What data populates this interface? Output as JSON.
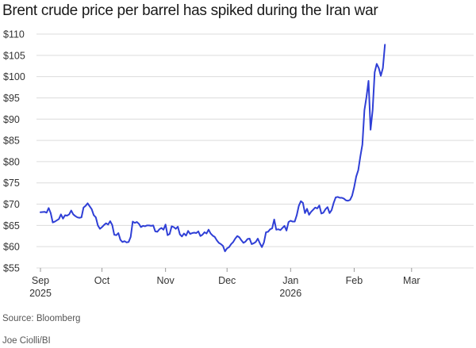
{
  "chart_data": {
    "type": "line",
    "title": "Brent crude price per barrel has spiked during the Iran war",
    "xlabel": "",
    "ylabel": "",
    "ylim": [
      55,
      110
    ],
    "yticks": [
      55,
      60,
      65,
      70,
      75,
      80,
      85,
      90,
      95,
      100,
      105,
      110
    ],
    "ytick_labels": [
      "$55",
      "$60",
      "$65",
      "$70",
      "$75",
      "$80",
      "$85",
      "$90",
      "$95",
      "$100",
      "$105",
      "$110"
    ],
    "xlim": [
      0,
      207
    ],
    "xticks": [
      {
        "x": 0,
        "label": "Sep",
        "sub": "2025"
      },
      {
        "x": 30,
        "label": "Oct",
        "sub": ""
      },
      {
        "x": 61,
        "label": "Nov",
        "sub": ""
      },
      {
        "x": 91,
        "label": "Dec",
        "sub": ""
      },
      {
        "x": 122,
        "label": "Jan",
        "sub": "2026"
      },
      {
        "x": 153,
        "label": "Feb",
        "sub": ""
      },
      {
        "x": 181,
        "label": "Mar",
        "sub": ""
      }
    ],
    "grid": true,
    "series": [
      {
        "name": "Brent crude",
        "color": "#2f3fd6",
        "points": [
          [
            0,
            68.1
          ],
          [
            2,
            68.2
          ],
          [
            3,
            68.0
          ],
          [
            4,
            69.1
          ],
          [
            5,
            67.9
          ],
          [
            6,
            65.7
          ],
          [
            7,
            65.9
          ],
          [
            8,
            66.2
          ],
          [
            9,
            66.5
          ],
          [
            10,
            67.6
          ],
          [
            11,
            66.6
          ],
          [
            12,
            67.4
          ],
          [
            13,
            67.3
          ],
          [
            14,
            67.6
          ],
          [
            15,
            68.5
          ],
          [
            16,
            67.6
          ],
          [
            17,
            67.2
          ],
          [
            18,
            66.9
          ],
          [
            19,
            66.8
          ],
          [
            20,
            66.9
          ],
          [
            21,
            69.2
          ],
          [
            22,
            69.6
          ],
          [
            23,
            70.2
          ],
          [
            24,
            69.5
          ],
          [
            25,
            68.8
          ],
          [
            26,
            67.4
          ],
          [
            27,
            66.9
          ],
          [
            28,
            65.0
          ],
          [
            29,
            64.2
          ],
          [
            30,
            64.6
          ],
          [
            31,
            65.1
          ],
          [
            32,
            65.5
          ],
          [
            33,
            65.2
          ],
          [
            34,
            66.0
          ],
          [
            35,
            65.1
          ],
          [
            36,
            62.8
          ],
          [
            37,
            62.7
          ],
          [
            38,
            63.2
          ],
          [
            39,
            61.6
          ],
          [
            40,
            61.1
          ],
          [
            41,
            61.3
          ],
          [
            42,
            61.0
          ],
          [
            43,
            61.1
          ],
          [
            44,
            62.3
          ],
          [
            45,
            65.9
          ],
          [
            46,
            65.6
          ],
          [
            47,
            65.8
          ],
          [
            48,
            65.4
          ],
          [
            49,
            64.6
          ],
          [
            50,
            64.9
          ],
          [
            51,
            64.8
          ],
          [
            52,
            65.0
          ],
          [
            53,
            65.0
          ],
          [
            54,
            64.9
          ],
          [
            55,
            65.0
          ],
          [
            56,
            63.6
          ],
          [
            57,
            63.5
          ],
          [
            58,
            64.1
          ],
          [
            59,
            64.4
          ],
          [
            60,
            64.0
          ],
          [
            61,
            65.2
          ],
          [
            62,
            62.7
          ],
          [
            63,
            63.0
          ],
          [
            64,
            64.8
          ],
          [
            65,
            64.6
          ],
          [
            66,
            64.2
          ],
          [
            67,
            64.7
          ],
          [
            68,
            62.9
          ],
          [
            69,
            62.4
          ],
          [
            70,
            63.1
          ],
          [
            71,
            62.6
          ],
          [
            72,
            63.7
          ],
          [
            73,
            63.0
          ],
          [
            74,
            63.2
          ],
          [
            75,
            63.3
          ],
          [
            76,
            63.2
          ],
          [
            77,
            63.6
          ],
          [
            78,
            62.5
          ],
          [
            79,
            62.8
          ],
          [
            80,
            63.4
          ],
          [
            81,
            63.1
          ],
          [
            82,
            64.0
          ],
          [
            83,
            63.1
          ],
          [
            84,
            62.6
          ],
          [
            85,
            62.3
          ],
          [
            86,
            61.5
          ],
          [
            87,
            60.9
          ],
          [
            88,
            60.6
          ],
          [
            89,
            60.2
          ],
          [
            90,
            58.9
          ],
          [
            91,
            59.6
          ],
          [
            92,
            59.9
          ],
          [
            93,
            60.6
          ],
          [
            94,
            61.1
          ],
          [
            95,
            61.9
          ],
          [
            96,
            62.5
          ],
          [
            97,
            62.2
          ],
          [
            98,
            61.5
          ],
          [
            99,
            60.9
          ],
          [
            100,
            61.2
          ],
          [
            101,
            61.8
          ],
          [
            102,
            61.9
          ],
          [
            103,
            60.6
          ],
          [
            104,
            60.8
          ],
          [
            105,
            61.1
          ],
          [
            106,
            61.9
          ],
          [
            107,
            60.8
          ],
          [
            108,
            59.9
          ],
          [
            109,
            61.0
          ],
          [
            110,
            63.4
          ],
          [
            111,
            63.5
          ],
          [
            112,
            64.1
          ],
          [
            113,
            64.3
          ],
          [
            114,
            66.4
          ],
          [
            115,
            64.0
          ],
          [
            116,
            64.1
          ],
          [
            117,
            63.9
          ],
          [
            118,
            64.4
          ],
          [
            119,
            64.9
          ],
          [
            120,
            63.8
          ],
          [
            121,
            65.8
          ],
          [
            122,
            66.1
          ],
          [
            123,
            65.9
          ],
          [
            124,
            65.9
          ],
          [
            125,
            67.4
          ],
          [
            126,
            69.6
          ],
          [
            127,
            70.7
          ],
          [
            128,
            70.3
          ],
          [
            129,
            67.9
          ],
          [
            130,
            68.9
          ],
          [
            131,
            67.5
          ],
          [
            132,
            68.2
          ],
          [
            133,
            68.7
          ],
          [
            134,
            69.2
          ],
          [
            135,
            69.0
          ],
          [
            136,
            69.7
          ],
          [
            137,
            67.8
          ],
          [
            138,
            68.0
          ],
          [
            139,
            68.8
          ],
          [
            140,
            69.3
          ],
          [
            141,
            67.9
          ],
          [
            142,
            68.6
          ],
          [
            143,
            70.3
          ],
          [
            144,
            71.6
          ],
          [
            145,
            71.7
          ],
          [
            146,
            71.5
          ],
          [
            147,
            71.5
          ],
          [
            148,
            71.3
          ],
          [
            149,
            70.9
          ],
          [
            150,
            70.8
          ],
          [
            151,
            71.0
          ],
          [
            152,
            72.0
          ],
          [
            153,
            74.0
          ],
          [
            154,
            76.5
          ],
          [
            155,
            78.0
          ],
          [
            156,
            81.2
          ],
          [
            157,
            84.0
          ],
          [
            158,
            92.1
          ],
          [
            159,
            95.2
          ],
          [
            160,
            99.0
          ],
          [
            161,
            87.5
          ],
          [
            162,
            92.1
          ],
          [
            163,
            101.0
          ],
          [
            164,
            103.0
          ],
          [
            165,
            102.0
          ],
          [
            166,
            100.2
          ],
          [
            167,
            102.0
          ],
          [
            168,
            107.5
          ]
        ]
      }
    ]
  },
  "footer": {
    "source": "Source: Bloomberg",
    "credit": "Joe Ciolli/BI"
  }
}
